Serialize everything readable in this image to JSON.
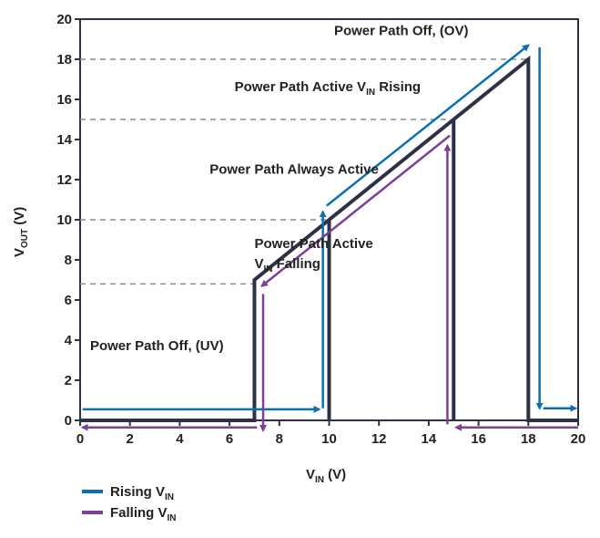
{
  "chart_data": {
    "type": "line",
    "title": "",
    "xlabel": {
      "main": "V",
      "sub": "IN",
      "unit": " (V)"
    },
    "ylabel": {
      "main": "V",
      "sub": "OUT",
      "unit": " (V)"
    },
    "xlim": [
      0,
      20
    ],
    "ylim": [
      0,
      20
    ],
    "xticks": [
      0,
      2,
      4,
      6,
      8,
      10,
      12,
      14,
      16,
      18,
      20
    ],
    "yticks": [
      0,
      2,
      4,
      6,
      8,
      10,
      12,
      14,
      16,
      18,
      20
    ],
    "grid": false,
    "threshold_lines": [
      {
        "y": 6.8,
        "x_end": 7.0
      },
      {
        "y": 10,
        "x_end": 10
      },
      {
        "y": 15,
        "x_end": 15
      },
      {
        "y": 18,
        "x_end": 18
      }
    ],
    "regions": [
      {
        "id": "ov",
        "lines": [
          {
            "text": "Power Path Off, (OV)"
          }
        ],
        "x": 10.2,
        "y": 19.2
      },
      {
        "id": "active-rising",
        "lines": [
          {
            "text": "Power Path Active V",
            "sub": "IN",
            "after": " Rising"
          }
        ],
        "x": 6.2,
        "y": 16.4
      },
      {
        "id": "always-active",
        "lines": [
          {
            "text": "Power Path Always Active"
          }
        ],
        "x": 5.2,
        "y": 12.3
      },
      {
        "id": "active-falling",
        "lines": [
          {
            "text": "Power Path Active"
          },
          {
            "text": "V",
            "sub": "IN",
            "after": " Falling"
          }
        ],
        "x": 7.0,
        "y": 8.6
      },
      {
        "id": "uv",
        "lines": [
          {
            "text": "Power Path Off, (UV)"
          }
        ],
        "x": 0.4,
        "y": 3.5
      }
    ],
    "series": [
      {
        "name": "V_OUT",
        "color": "#2e3146",
        "points": [
          [
            0,
            0
          ],
          [
            7,
            0
          ],
          [
            7,
            7
          ],
          [
            10,
            10
          ],
          [
            10,
            0
          ],
          [
            10,
            10
          ],
          [
            15,
            15
          ],
          [
            15,
            0
          ],
          [
            15,
            15
          ],
          [
            18,
            18
          ],
          [
            18,
            0
          ],
          [
            20,
            0
          ]
        ]
      },
      {
        "name": "Rising V_IN",
        "color": "#0a6fb4",
        "segments": [
          {
            "points": [
              [
                0.1,
                0.55
              ],
              [
                9.6,
                0.55
              ]
            ],
            "arrow": true
          },
          {
            "points": [
              [
                9.75,
                0.6
              ],
              [
                9.75,
                10.4
              ]
            ],
            "arrow": true
          },
          {
            "points": [
              [
                9.9,
                10.7
              ],
              [
                18.0,
                18.7
              ]
            ],
            "arrow": true
          },
          {
            "points": [
              [
                18.45,
                18.6
              ],
              [
                18.45,
                0.6
              ]
            ],
            "arrow": true
          },
          {
            "points": [
              [
                18.6,
                0.6
              ],
              [
                19.9,
                0.6
              ]
            ],
            "arrow": true
          }
        ]
      },
      {
        "name": "Falling V_IN",
        "color": "#7d3f98",
        "segments": [
          {
            "points": [
              [
                20,
                -0.35
              ],
              [
                15.1,
                -0.35
              ]
            ],
            "arrow": true
          },
          {
            "points": [
              [
                14.75,
                -0.2
              ],
              [
                14.75,
                13.7
              ]
            ],
            "arrow": true
          },
          {
            "points": [
              [
                14.85,
                14.2
              ],
              [
                7.3,
                6.7
              ]
            ],
            "arrow": true
          },
          {
            "points": [
              [
                7.35,
                6.3
              ],
              [
                7.35,
                -0.5
              ]
            ],
            "arrow": true
          },
          {
            "points": [
              [
                7.1,
                -0.35
              ],
              [
                0.1,
                -0.35
              ]
            ],
            "arrow": true
          }
        ]
      }
    ],
    "legend": {
      "position": "bottom-left",
      "items": [
        {
          "label": "Rising V",
          "sub": "IN",
          "color": "#0a6fb4"
        },
        {
          "label": "Falling V",
          "sub": "IN",
          "color": "#7d3f98"
        }
      ]
    }
  }
}
